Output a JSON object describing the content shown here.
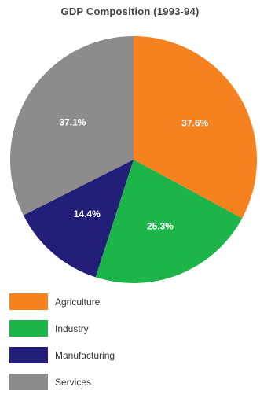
{
  "chart_data": {
    "type": "pie",
    "title": "GDP Composition (1993-94)",
    "slices": [
      {
        "name": "Agriculture",
        "value": 37.6,
        "label": "37.6%",
        "color": "#F5821F"
      },
      {
        "name": "Industry",
        "value": 25.3,
        "label": "25.3%",
        "color": "#1DB54A"
      },
      {
        "name": "Manufacturing",
        "value": 14.4,
        "label": "14.4%",
        "color": "#231F78"
      },
      {
        "name": "Services",
        "value": 37.1,
        "label": "37.1%",
        "color": "#8C8C8C"
      }
    ],
    "legend": {
      "placement": "bottom-left"
    }
  }
}
